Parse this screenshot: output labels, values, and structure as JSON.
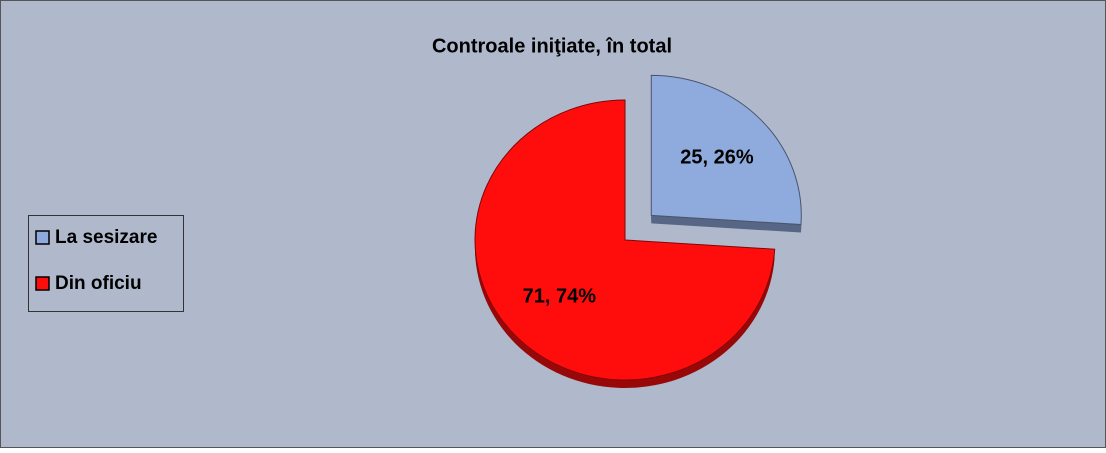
{
  "chart_data": {
    "type": "pie",
    "title": "Controale iniţiate, în total",
    "categories": [
      "La sesizare",
      "Din oficiu"
    ],
    "values": [
      25,
      71
    ],
    "value_labels": [
      "25, 26%",
      "71, 74%"
    ],
    "colors": [
      "#8faadc",
      "#ff0d0d"
    ],
    "exploded": [
      true,
      false
    ],
    "legend": "left"
  }
}
